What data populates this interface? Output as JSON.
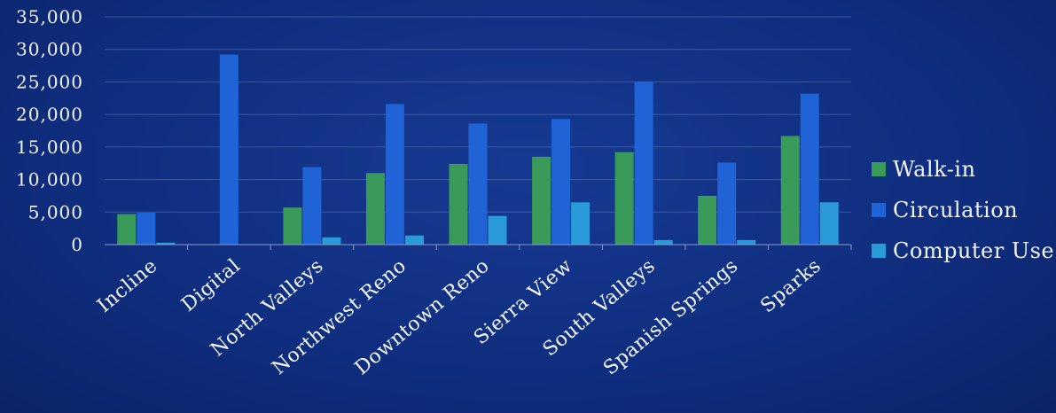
{
  "colors": {
    "background": "#0f2d7e",
    "walk_in": "#3a9a5a",
    "circulation": "#1f63d6",
    "computer_use": "#2a9bd8"
  },
  "chart_data": {
    "type": "bar",
    "title": "",
    "xlabel": "",
    "ylabel": "",
    "ylim": [
      0,
      35000
    ],
    "yticks": [
      0,
      5000,
      10000,
      15000,
      20000,
      25000,
      30000,
      35000
    ],
    "ytick_labels": [
      "0",
      "5,000",
      "10,000",
      "15,000",
      "20,000",
      "25,000",
      "30,000",
      "35,000"
    ],
    "grid": true,
    "legend_position": "right",
    "categories": [
      "Incline",
      "Digital",
      "North Valleys",
      "Northwest Reno",
      "Downtown Reno",
      "Sierra View",
      "South Valleys",
      "Spanish Springs",
      "Sparks"
    ],
    "series": [
      {
        "name": "Walk-in",
        "color": "#3a9a5a",
        "values": [
          4700,
          0,
          5700,
          11000,
          12400,
          13500,
          14200,
          7500,
          16700
        ]
      },
      {
        "name": "Circulation",
        "color": "#1f63d6",
        "values": [
          4900,
          29200,
          11900,
          21600,
          18600,
          19300,
          25000,
          12600,
          23200
        ]
      },
      {
        "name": "Computer Use",
        "color": "#2a9bd8",
        "values": [
          300,
          0,
          1100,
          1400,
          4400,
          6500,
          700,
          700,
          6500
        ]
      }
    ]
  }
}
